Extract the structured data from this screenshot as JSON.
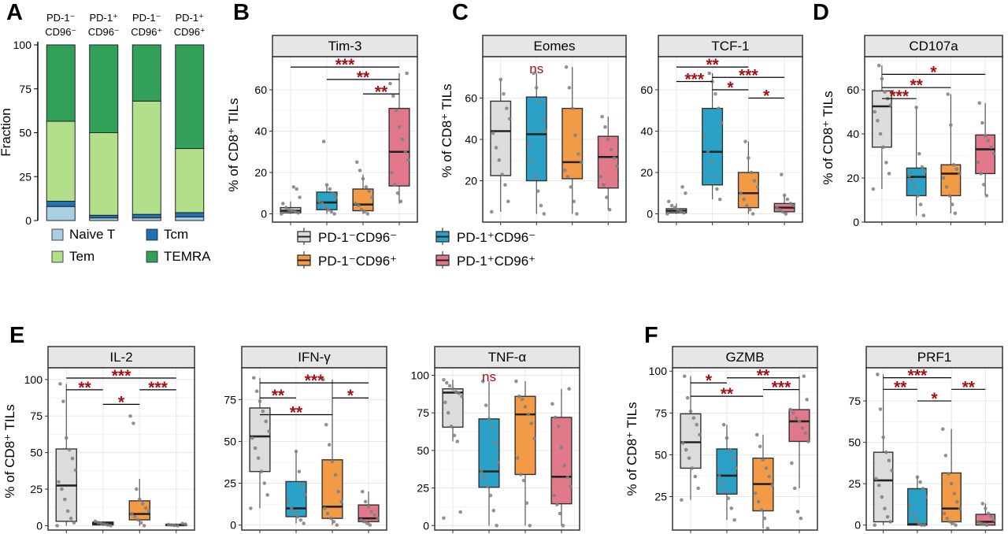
{
  "figure": {
    "panel_letters": [
      "A",
      "B",
      "C",
      "D",
      "E",
      "F"
    ],
    "y_label_pct": "% of CD8⁺ TILs",
    "sig_color": "#a50f15",
    "group_colors": [
      "#dcdcdc",
      "#2aa1c6",
      "#f39a46",
      "#e2798b"
    ],
    "group_legend": [
      {
        "label": "PD-1⁻CD96⁻",
        "color": "#dcdcdc"
      },
      {
        "label": "PD-1⁺CD96⁻",
        "color": "#2aa1c6"
      },
      {
        "label": "PD-1⁻CD96⁺",
        "color": "#f39a46"
      },
      {
        "label": "PD-1⁺CD96⁺",
        "color": "#e2798b"
      }
    ]
  },
  "chart_data": [
    {
      "panel": "A",
      "type": "bar",
      "stacked": true,
      "ylabel": "Fraction",
      "ylim": [
        0,
        100
      ],
      "yticks": [
        0,
        25,
        50,
        75,
        100
      ],
      "categories": [
        {
          "line1": "PD-1⁻",
          "line2": "CD96⁻"
        },
        {
          "line1": "PD-1⁺",
          "line2": "CD96⁻"
        },
        {
          "line1": "PD-1⁻",
          "line2": "CD96⁺"
        },
        {
          "line1": "PD-1⁺",
          "line2": "CD96⁺"
        }
      ],
      "series": [
        {
          "name": "Naive T",
          "color": "#a9cfe3",
          "values": [
            8,
            1.5,
            1.5,
            2
          ]
        },
        {
          "name": "Tcm",
          "color": "#2171b5",
          "values": [
            3,
            1.5,
            2,
            2.5
          ]
        },
        {
          "name": "Tem",
          "color": "#b2df8a",
          "values": [
            45.5,
            47,
            64.5,
            36.5
          ]
        },
        {
          "name": "TEMRA",
          "color": "#33a05a",
          "values": [
            43.5,
            50,
            32,
            59
          ]
        }
      ]
    },
    {
      "panel": "B",
      "type": "box",
      "title": "Tim-3",
      "ylim": [
        -4,
        76
      ],
      "yticks": [
        0,
        20,
        40,
        60
      ],
      "boxes": [
        {
          "q1": 0.5,
          "med": 1.5,
          "q3": 3,
          "lo": 0,
          "hi": 6
        },
        {
          "q1": 2,
          "med": 5.5,
          "q3": 10.5,
          "lo": 0,
          "hi": 14
        },
        {
          "q1": 1.5,
          "med": 4.5,
          "q3": 12,
          "lo": 0,
          "hi": 19
        },
        {
          "q1": 13.5,
          "med": 30,
          "q3": 51,
          "lo": 5,
          "hi": 68
        }
      ],
      "points": [
        [
          0,
          0.5,
          1,
          1.5,
          2,
          3,
          5,
          8,
          12,
          13
        ],
        [
          0,
          1,
          2,
          3,
          5,
          6,
          8,
          10,
          12,
          14,
          35
        ],
        [
          0,
          1,
          2,
          4,
          5,
          8,
          11,
          13,
          17,
          21,
          25
        ],
        [
          6,
          10,
          14,
          20,
          26,
          30,
          36,
          42,
          50,
          57,
          63,
          68
        ]
      ],
      "sig": [
        {
          "from": 1,
          "to": 4,
          "label": "***",
          "y": 71
        },
        {
          "from": 2,
          "to": 4,
          "label": "**",
          "y": 65
        },
        {
          "from": 3,
          "to": 4,
          "label": "**",
          "y": 58
        }
      ]
    },
    {
      "panel": "C",
      "type": "box",
      "title": "Eomes",
      "ylim": [
        0,
        80
      ],
      "yticks": [
        20,
        40,
        60
      ],
      "boxes": [
        {
          "q1": 22.5,
          "med": 44,
          "q3": 58.5,
          "lo": 5,
          "hi": 69
        },
        {
          "q1": 20,
          "med": 42.5,
          "q3": 60.5,
          "lo": 4,
          "hi": 72
        },
        {
          "q1": 21,
          "med": 29,
          "q3": 55,
          "lo": 4,
          "hi": 75
        },
        {
          "q1": 16.5,
          "med": 31.5,
          "q3": 41.5,
          "lo": 6,
          "hi": 51
        }
      ],
      "points": [
        [
          5,
          10,
          18,
          23,
          30,
          36,
          43,
          50,
          55,
          62,
          69
        ],
        [
          4,
          8,
          15,
          22,
          30,
          38,
          44,
          50,
          58,
          65,
          72
        ],
        [
          4,
          10,
          17,
          22,
          25,
          29,
          33,
          42,
          55,
          65,
          75
        ],
        [
          6,
          12,
          18,
          22,
          27,
          31,
          35,
          40,
          46,
          51
        ]
      ],
      "sig": [
        {
          "label": "ns",
          "y": 72
        }
      ]
    },
    {
      "panel": "C",
      "type": "box",
      "title": "TCF-1",
      "ylim": [
        -4,
        76
      ],
      "yticks": [
        0,
        20,
        40,
        60
      ],
      "boxes": [
        {
          "q1": 0.5,
          "med": 1.5,
          "q3": 2.5,
          "lo": 0,
          "hi": 5
        },
        {
          "q1": 14,
          "med": 30,
          "q3": 51,
          "lo": 7,
          "hi": 68
        },
        {
          "q1": 3,
          "med": 10,
          "q3": 20,
          "lo": 0,
          "hi": 35
        },
        {
          "q1": 1,
          "med": 3,
          "q3": 5,
          "lo": 0,
          "hi": 9
        }
      ],
      "points": [
        [
          0,
          0.5,
          1,
          2,
          3,
          4,
          6,
          10,
          13
        ],
        [
          7,
          12,
          18,
          25,
          30,
          38,
          44,
          51,
          58,
          64,
          68
        ],
        [
          0,
          2,
          4,
          7,
          10,
          13,
          16,
          20,
          27,
          35
        ],
        [
          0,
          1,
          2,
          3,
          4,
          5,
          7,
          9,
          19
        ]
      ],
      "sig": [
        {
          "from": 1,
          "to": 3,
          "label": "**",
          "y": 71
        },
        {
          "from": 1,
          "to": 2,
          "label": "***",
          "y": 64
        },
        {
          "from": 2,
          "to": 4,
          "label": "***",
          "y": 66
        },
        {
          "from": 2,
          "to": 3,
          "label": "*",
          "y": 60
        },
        {
          "from": 3,
          "to": 4,
          "label": "*",
          "y": 56
        }
      ]
    },
    {
      "panel": "D",
      "type": "box",
      "title": "CD107a",
      "ylim": [
        0,
        75
      ],
      "yticks": [
        0,
        20,
        40,
        60
      ],
      "boxes": [
        {
          "q1": 34,
          "med": 52.5,
          "q3": 59.5,
          "lo": 15,
          "hi": 71
        },
        {
          "q1": 12,
          "med": 20.5,
          "q3": 24.5,
          "lo": 3,
          "hi": 52
        },
        {
          "q1": 12,
          "med": 22,
          "q3": 26,
          "lo": 4,
          "hi": 58
        },
        {
          "q1": 22,
          "med": 33,
          "q3": 39.5,
          "lo": 12,
          "hi": 54
        }
      ],
      "points": [
        [
          15,
          22,
          27,
          34,
          40,
          46,
          50,
          53,
          56,
          59,
          65,
          71
        ],
        [
          3,
          8,
          12,
          16,
          19,
          21,
          23,
          25,
          31,
          52
        ],
        [
          4,
          8,
          12,
          16,
          20,
          22,
          24,
          26,
          44,
          58
        ],
        [
          12,
          17,
          22,
          27,
          31,
          34,
          37,
          39,
          45,
          54
        ]
      ],
      "sig": [
        {
          "from": 1,
          "to": 4,
          "label": "*",
          "y": 67
        },
        {
          "from": 1,
          "to": 3,
          "label": "**",
          "y": 61
        },
        {
          "from": 1,
          "to": 2,
          "label": "***",
          "y": 56
        }
      ]
    },
    {
      "panel": "E",
      "type": "box",
      "title": "IL-2",
      "ylim": [
        -3,
        108
      ],
      "yticks": [
        0,
        25,
        50,
        75,
        100
      ],
      "boxes": [
        {
          "q1": 3,
          "med": 27.5,
          "q3": 52.5,
          "lo": 0,
          "hi": 97
        },
        {
          "q1": 0.5,
          "med": 1.5,
          "q3": 2.5,
          "lo": 0,
          "hi": 3
        },
        {
          "q1": 4,
          "med": 8,
          "q3": 17,
          "lo": 0,
          "hi": 32
        },
        {
          "q1": 0,
          "med": 0.5,
          "q3": 1,
          "lo": 0,
          "hi": 1.5
        }
      ],
      "points": [
        [
          0,
          2,
          5,
          10,
          18,
          25,
          30,
          38,
          46,
          52,
          60,
          85,
          97
        ],
        [
          0,
          0.5,
          1,
          1.5,
          2,
          3
        ],
        [
          0,
          2,
          4,
          6,
          8,
          10,
          12,
          15,
          18,
          25,
          70,
          75
        ],
        [
          0,
          0.2,
          0.5,
          0.8,
          1,
          1.5
        ]
      ],
      "sig": [
        {
          "from": 1,
          "to": 4,
          "label": "***",
          "y": 101
        },
        {
          "from": 1,
          "to": 2,
          "label": "**",
          "y": 93
        },
        {
          "from": 3,
          "to": 4,
          "label": "***",
          "y": 93
        },
        {
          "from": 2,
          "to": 3,
          "label": "*",
          "y": 83
        }
      ]
    },
    {
      "panel": "E",
      "type": "box",
      "title": "IFN-γ",
      "ylim": [
        -3,
        94
      ],
      "yticks": [
        0,
        25,
        50,
        75
      ],
      "boxes": [
        {
          "q1": 32,
          "med": 53,
          "q3": 70,
          "lo": 10,
          "hi": 88
        },
        {
          "q1": 5,
          "med": 10,
          "q3": 26,
          "lo": 1,
          "hi": 44
        },
        {
          "q1": 4,
          "med": 11,
          "q3": 39,
          "lo": 0,
          "hi": 87
        },
        {
          "q1": 2,
          "med": 4,
          "q3": 12,
          "lo": 0,
          "hi": 20
        }
      ],
      "points": [
        [
          10,
          18,
          25,
          32,
          40,
          46,
          52,
          56,
          62,
          68,
          74,
          80,
          88
        ],
        [
          1,
          3,
          5,
          8,
          10,
          14,
          18,
          24,
          32,
          44
        ],
        [
          0,
          2,
          4,
          7,
          10,
          14,
          20,
          30,
          38,
          48,
          60,
          87
        ],
        [
          0,
          1,
          2,
          3,
          4,
          6,
          8,
          11,
          14,
          20
        ]
      ],
      "sig": [
        {
          "from": 1,
          "to": 4,
          "label": "***",
          "y": 85
        },
        {
          "from": 1,
          "to": 2,
          "label": "**",
          "y": 76
        },
        {
          "from": 3,
          "to": 4,
          "label": "*",
          "y": 76
        },
        {
          "from": 1,
          "to": 3,
          "label": "**",
          "y": 66
        }
      ]
    },
    {
      "panel": "E",
      "type": "box",
      "title": "TNF-α",
      "ylim": [
        -3,
        105
      ],
      "yticks": [
        0,
        25,
        50,
        75,
        100
      ],
      "boxes": [
        {
          "q1": 65.5,
          "med": 88.5,
          "q3": 91,
          "lo": 56,
          "hi": 97
        },
        {
          "q1": 25.5,
          "med": 36,
          "q3": 71,
          "lo": 0,
          "hi": 96
        },
        {
          "q1": 34,
          "med": 74,
          "q3": 86,
          "lo": 0,
          "hi": 96
        },
        {
          "q1": 14.5,
          "med": 32.5,
          "q3": 72,
          "lo": 0,
          "hi": 91
        }
      ],
      "points": [
        [
          5,
          9,
          56,
          60,
          66,
          75,
          82,
          86,
          88,
          89,
          91,
          93,
          95,
          97
        ],
        [
          0,
          10,
          20,
          26,
          32,
          36,
          42,
          55,
          65,
          71,
          80,
          96
        ],
        [
          0,
          15,
          30,
          34,
          45,
          58,
          68,
          74,
          79,
          84,
          86,
          96
        ],
        [
          0,
          8,
          14,
          20,
          26,
          32,
          40,
          52,
          66,
          72,
          81,
          91
        ]
      ],
      "sig": [
        {
          "label": "ns",
          "y": 96
        }
      ]
    },
    {
      "panel": "F",
      "type": "box",
      "title": "GZMB",
      "ylim": [
        5,
        102
      ],
      "yticks": [
        25,
        50,
        75,
        100
      ],
      "boxes": [
        {
          "q1": 42,
          "med": 57.5,
          "q3": 74.5,
          "lo": 23,
          "hi": 97
        },
        {
          "q1": 26.5,
          "med": 37.5,
          "q3": 53.5,
          "lo": 11,
          "hi": 68
        },
        {
          "q1": 16.5,
          "med": 32.5,
          "q3": 48,
          "lo": 6,
          "hi": 62
        },
        {
          "q1": 58,
          "med": 70,
          "q3": 77,
          "lo": 30,
          "hi": 97
        }
      ],
      "points": [
        [
          23,
          30,
          37,
          42,
          48,
          53,
          57,
          62,
          68,
          72,
          76,
          84,
          97
        ],
        [
          11,
          18,
          24,
          28,
          33,
          37,
          42,
          48,
          53,
          60,
          68
        ],
        [
          6,
          12,
          17,
          22,
          27,
          32,
          37,
          42,
          47,
          55,
          62
        ],
        [
          12,
          16,
          30,
          45,
          58,
          63,
          66,
          70,
          72,
          75,
          77,
          83,
          97
        ]
      ],
      "sig": [
        {
          "from": 1,
          "to": 2,
          "label": "*",
          "y": 93
        },
        {
          "from": 2,
          "to": 4,
          "label": "**",
          "y": 96
        },
        {
          "from": 3,
          "to": 4,
          "label": "***",
          "y": 89
        },
        {
          "from": 1,
          "to": 3,
          "label": "**",
          "y": 85
        }
      ]
    },
    {
      "panel": "F",
      "type": "box",
      "title": "PRF1",
      "ylim": [
        -3,
        95
      ],
      "yticks": [
        0,
        25,
        50,
        75
      ],
      "boxes": [
        {
          "q1": 2,
          "med": 27,
          "q3": 44,
          "lo": 0,
          "hi": 91
        },
        {
          "q1": 0,
          "med": 0.5,
          "q3": 22,
          "lo": 0,
          "hi": 29
        },
        {
          "q1": 2,
          "med": 10,
          "q3": 31.5,
          "lo": 0,
          "hi": 58
        },
        {
          "q1": 0,
          "med": 2,
          "q3": 6.5,
          "lo": 0,
          "hi": 13
        }
      ],
      "points": [
        [
          0,
          2,
          5,
          10,
          17,
          24,
          28,
          33,
          39,
          44,
          53,
          70,
          91
        ],
        [
          0,
          0,
          1,
          3,
          7,
          12,
          17,
          22,
          26,
          29
        ],
        [
          0,
          1,
          2,
          4,
          7,
          10,
          14,
          19,
          25,
          31,
          42,
          58
        ],
        [
          0,
          0.5,
          1,
          2,
          3,
          5,
          7,
          10,
          13
        ]
      ],
      "sig": [
        {
          "from": 1,
          "to": 3,
          "label": "***",
          "y": 89
        },
        {
          "from": 1,
          "to": 2,
          "label": "**",
          "y": 82
        },
        {
          "from": 3,
          "to": 4,
          "label": "**",
          "y": 82
        },
        {
          "from": 2,
          "to": 3,
          "label": "*",
          "y": 75
        }
      ]
    }
  ]
}
